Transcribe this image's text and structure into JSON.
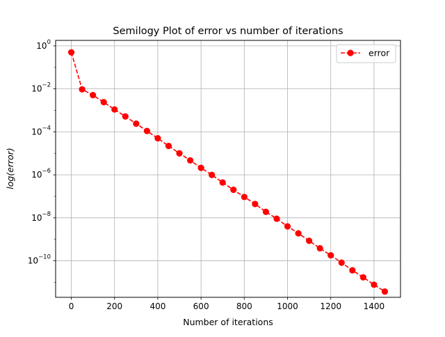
{
  "chart_data": {
    "type": "line",
    "title": "Semilogy Plot of error vs number of iterations",
    "xlabel": "Number of iterations",
    "ylabel": "log(error)",
    "xlim": [
      -72.5,
      1522.5
    ],
    "ylim": [
      2e-12,
      1.8
    ],
    "yscale": "log",
    "grid": true,
    "legend_position": "top-right",
    "x_ticks": [
      0,
      200,
      400,
      600,
      800,
      1000,
      1200,
      1400
    ],
    "x_tick_labels": [
      "0",
      "200",
      "400",
      "600",
      "800",
      "1000",
      "1200",
      "1400"
    ],
    "y_ticks": [
      {
        "value": 1,
        "base": "10",
        "exp": "0"
      },
      {
        "value": 0.01,
        "base": "10",
        "exp": "−2"
      },
      {
        "value": 0.0001,
        "base": "10",
        "exp": "−4"
      },
      {
        "value": 1e-06,
        "base": "10",
        "exp": "−6"
      },
      {
        "value": 1e-08,
        "base": "10",
        "exp": "−8"
      },
      {
        "value": 1e-10,
        "base": "10",
        "exp": "−10"
      }
    ],
    "series": [
      {
        "name": "error",
        "color": "#ff0000",
        "line_style": "dashed",
        "marker": "circle",
        "x": [
          0,
          50,
          100,
          150,
          200,
          250,
          300,
          350,
          400,
          450,
          500,
          550,
          600,
          650,
          700,
          750,
          800,
          850,
          900,
          950,
          1000,
          1050,
          1100,
          1150,
          1200,
          1250,
          1300,
          1350,
          1400,
          1450
        ],
        "y": [
          0.5,
          0.0095,
          0.0051,
          0.0024,
          0.0011,
          0.00052,
          0.00024,
          0.00011,
          5e-05,
          2.2e-05,
          1e-05,
          4.7e-06,
          2.1e-06,
          9.9e-07,
          4.4e-07,
          2e-07,
          9.3e-08,
          4.4e-08,
          1.9e-08,
          9.1e-09,
          4e-09,
          1.9e-09,
          8.5e-10,
          3.8e-10,
          1.8e-10,
          8.2e-11,
          3.6e-11,
          1.7e-11,
          7.7e-12,
          3.7e-12
        ]
      }
    ]
  }
}
